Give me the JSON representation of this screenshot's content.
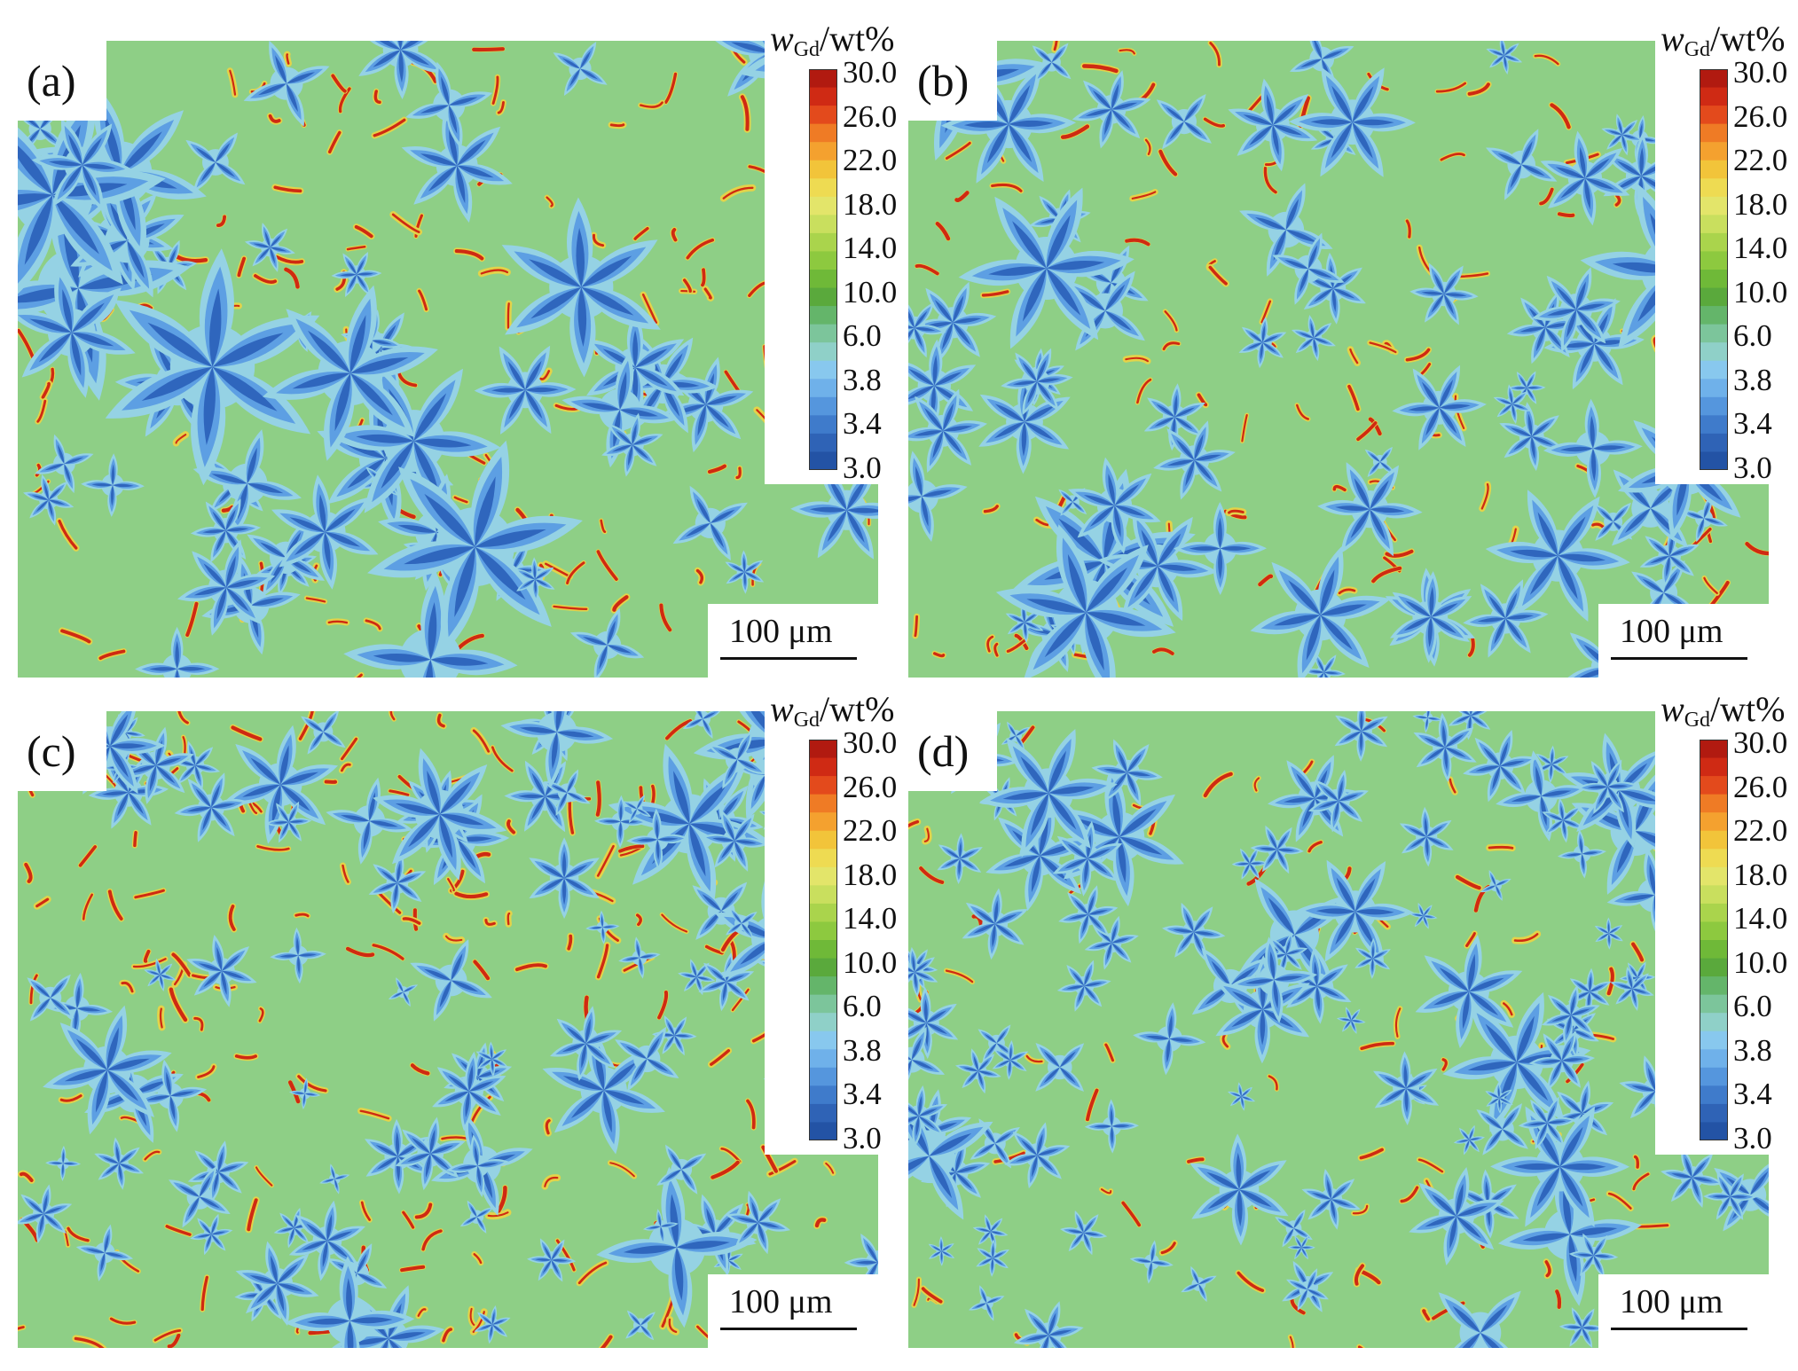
{
  "colormap": {
    "title_symbol": "w",
    "title_subscript": "Gd",
    "title_unit": "/wt%",
    "ticks": [
      "30.0",
      "26.0",
      "22.0",
      "18.0",
      "14.0",
      "10.0",
      "6.0",
      "3.8",
      "3.4",
      "3.0"
    ],
    "bands": [
      "#b11a10",
      "#cf2a14",
      "#e34a1c",
      "#ef7b25",
      "#f4a12f",
      "#f2c43a",
      "#eedb52",
      "#e3e56a",
      "#c9df5e",
      "#aad44c",
      "#8dc93f",
      "#6fb938",
      "#5aa93c",
      "#64b56a",
      "#7cc59b",
      "#8fd0c8",
      "#88c8ee",
      "#6fb1ea",
      "#5596dd",
      "#3f7bcb",
      "#2f63b6",
      "#2353a5"
    ]
  },
  "colors": {
    "matrix": "#8ecf86",
    "halo": "#95d2e4",
    "dendrite_outer": "#5d9fe3",
    "dendrite_core": "#2f66bd",
    "segregation": "#cf2a12",
    "rim": "#e3d34a"
  },
  "panels": [
    {
      "label": "(a)",
      "scalebar": "100 μm"
    },
    {
      "label": "(b)",
      "scalebar": "100 μm"
    },
    {
      "label": "(c)",
      "scalebar": "100 μm"
    },
    {
      "label": "(d)",
      "scalebar": "100 μm"
    }
  ]
}
